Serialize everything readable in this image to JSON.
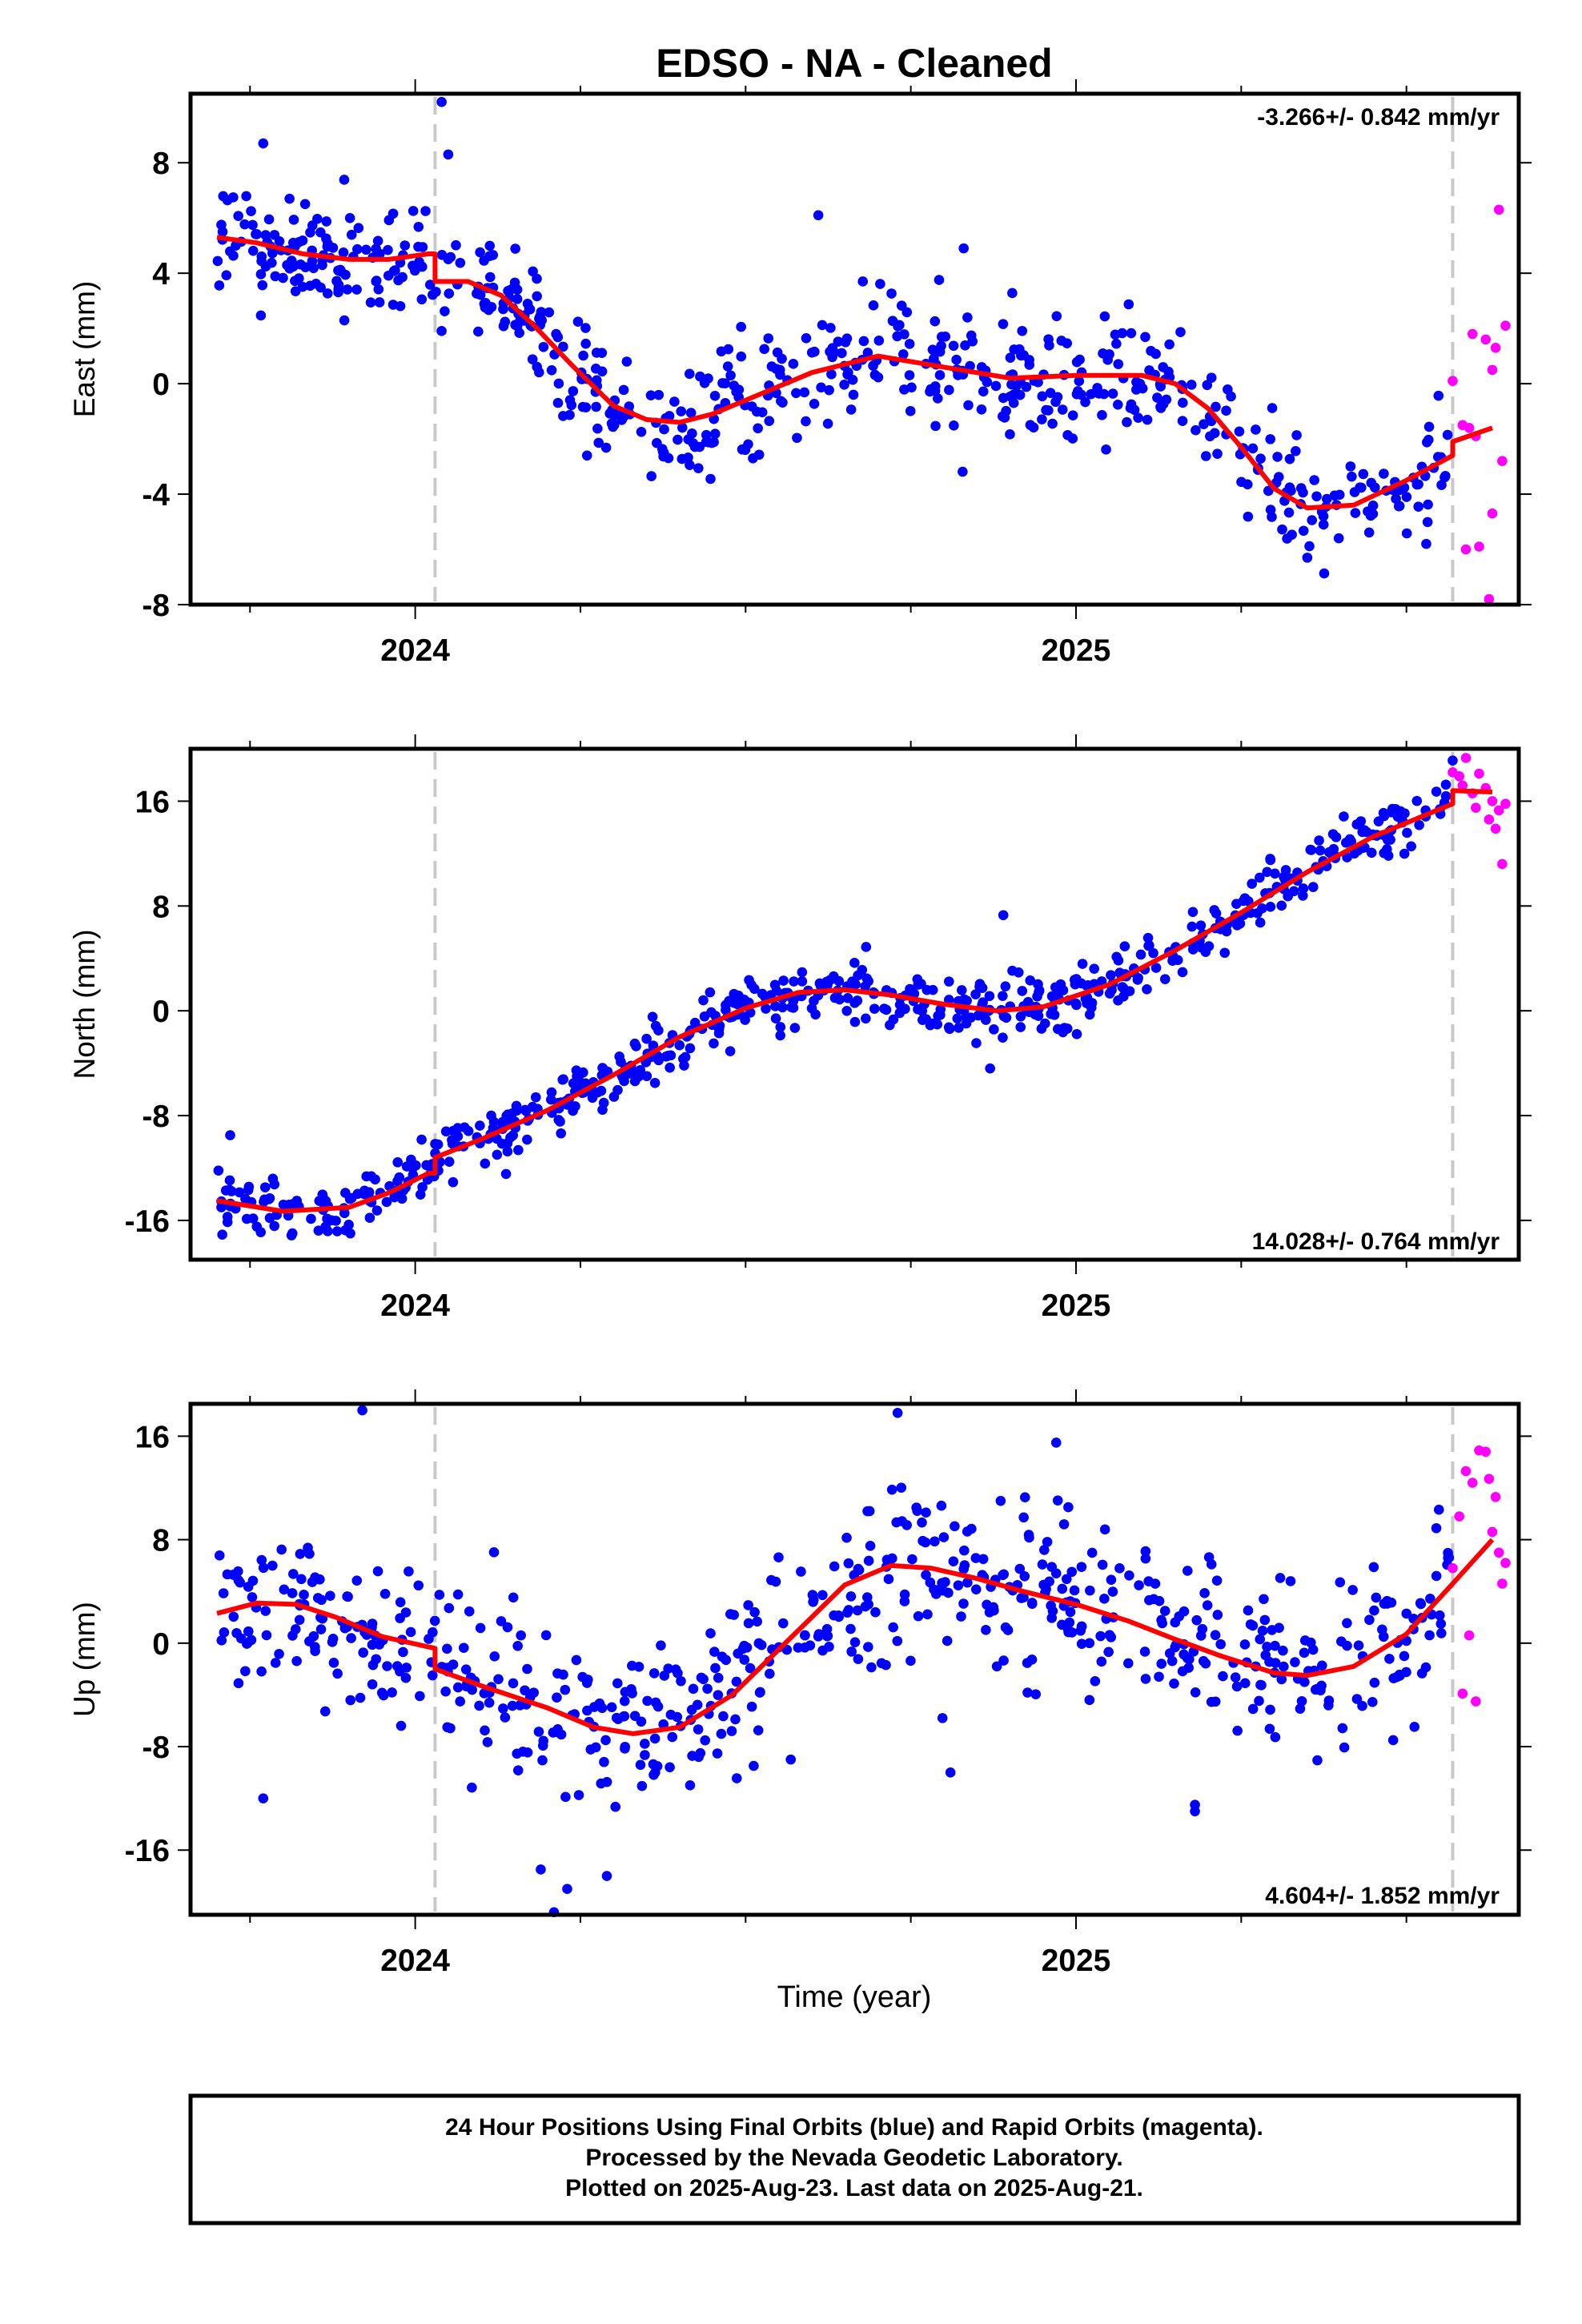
{
  "title": "EDSO  - NA - Cleaned",
  "xlabel": "Time (year)",
  "footer": {
    "line1": "24 Hour Positions Using Final Orbits (blue) and Rapid Orbits (magenta).",
    "line2": "Processed by the Nevada Geodetic Laboratory.",
    "line3": "Plotted on 2025-Aug-23. Last data on 2025-Aug-21."
  },
  "colors": {
    "final": "#0000ff",
    "rapid": "#ff00ff",
    "model": "#ff0000",
    "break": "#c8c8c8"
  },
  "chart_data": [
    {
      "type": "scatter",
      "ylabel": "East (mm)",
      "rate_label": "-3.266+/- 0.842 mm/yr",
      "xlim": [
        2023.66,
        2025.67
      ],
      "ylim": [
        -8,
        10.5
      ],
      "yticks": [
        8,
        4,
        0,
        -4,
        -8
      ],
      "xticks": [
        2024,
        2025
      ],
      "breaks": [
        2024.03,
        2025.57
      ],
      "model_x": [
        2023.7,
        2023.76,
        2023.83,
        2023.9,
        2023.96,
        2024.02,
        2024.03,
        2024.03,
        2024.08,
        2024.13,
        2024.18,
        2024.24,
        2024.3,
        2024.35,
        2024.4,
        2024.45,
        2024.52,
        2024.6,
        2024.7,
        2024.8,
        2024.9,
        2025.0,
        2025.05,
        2025.1,
        2025.15,
        2025.2,
        2025.25,
        2025.3,
        2025.35,
        2025.42,
        2025.5,
        2025.57,
        2025.57,
        2025.63
      ],
      "model_y": [
        5.3,
        5.1,
        4.7,
        4.5,
        4.5,
        4.7,
        4.7,
        3.7,
        3.7,
        3.2,
        2.1,
        0.6,
        -0.8,
        -1.3,
        -1.4,
        -1.1,
        -0.4,
        0.4,
        1.0,
        0.6,
        0.2,
        0.3,
        0.3,
        0.3,
        0.0,
        -0.9,
        -2.3,
        -3.8,
        -4.5,
        -4.4,
        -3.5,
        -2.6,
        -2.1,
        -1.6
      ],
      "final_anchor_x": [
        2023.7,
        2023.76,
        2023.83,
        2023.9,
        2023.96,
        2024.02,
        2024.03,
        2024.08,
        2024.13,
        2024.18,
        2024.24,
        2024.3,
        2024.35,
        2024.4,
        2024.45,
        2024.52,
        2024.6,
        2024.7,
        2024.8,
        2024.9,
        2025.0,
        2025.05,
        2025.1,
        2025.15,
        2025.2,
        2025.25,
        2025.3,
        2025.35,
        2025.42,
        2025.5,
        2025.57
      ],
      "final_anchor_y": [
        5.3,
        5.1,
        4.7,
        4.5,
        4.5,
        4.7,
        3.7,
        3.7,
        3.2,
        2.1,
        0.6,
        -0.8,
        -1.3,
        -1.4,
        -1.1,
        -0.4,
        0.4,
        1.0,
        0.6,
        0.2,
        0.3,
        0.3,
        0.3,
        0.0,
        -0.9,
        -2.3,
        -3.8,
        -4.5,
        -4.4,
        -3.5,
        -2.6
      ],
      "final_x_range": [
        2023.7,
        2025.565
      ],
      "final_count": 640,
      "final_scatter": 1.05,
      "final_outliers": [
        [
          2024.04,
          10.2
        ],
        [
          2024.05,
          8.3
        ],
        [
          2023.77,
          8.7
        ],
        [
          2024.61,
          6.1
        ],
        [
          2024.83,
          4.9
        ],
        [
          2024.26,
          -2.6
        ],
        [
          2025.35,
          -6.3
        ],
        [
          2025.53,
          -5.8
        ]
      ],
      "rapid": [
        [
          2025.57,
          0.1
        ],
        [
          2025.585,
          -1.5
        ],
        [
          2025.59,
          -6.0
        ],
        [
          2025.595,
          -1.6
        ],
        [
          2025.6,
          1.8
        ],
        [
          2025.605,
          -1.9
        ],
        [
          2025.61,
          -5.9
        ],
        [
          2025.62,
          1.6
        ],
        [
          2025.625,
          -7.8
        ],
        [
          2025.63,
          0.5
        ],
        [
          2025.63,
          -4.7
        ],
        [
          2025.635,
          1.3
        ],
        [
          2025.64,
          6.3
        ],
        [
          2025.645,
          -2.8
        ],
        [
          2025.65,
          2.1
        ]
      ]
    },
    {
      "type": "scatter",
      "ylabel": "North (mm)",
      "rate_label": "14.028+/- 0.764 mm/yr",
      "xlim": [
        2023.66,
        2025.67
      ],
      "ylim": [
        -19,
        20
      ],
      "yticks": [
        16,
        8,
        0,
        -8,
        -16
      ],
      "xticks": [
        2024,
        2025
      ],
      "breaks": [
        2024.03,
        2025.57
      ],
      "model_x": [
        2023.7,
        2023.8,
        2023.9,
        2023.96,
        2024.02,
        2024.03,
        2024.03,
        2024.1,
        2024.2,
        2024.3,
        2024.4,
        2024.5,
        2024.58,
        2024.65,
        2024.72,
        2024.8,
        2024.88,
        2024.95,
        2025.05,
        2025.15,
        2025.25,
        2025.35,
        2025.45,
        2025.57,
        2025.57,
        2025.63
      ],
      "model_y": [
        -14.5,
        -15.3,
        -15.0,
        -13.9,
        -12.4,
        -12.4,
        -11.2,
        -9.8,
        -7.6,
        -4.9,
        -2.0,
        0.2,
        1.4,
        1.6,
        1.2,
        0.5,
        0.0,
        0.3,
        2.0,
        4.6,
        7.5,
        10.6,
        13.3,
        15.8,
        16.8,
        16.7
      ],
      "final_anchor_x": [
        2023.7,
        2023.8,
        2023.9,
        2023.96,
        2024.02,
        2024.03,
        2024.1,
        2024.2,
        2024.3,
        2024.4,
        2024.5,
        2024.58,
        2024.65,
        2024.72,
        2024.8,
        2024.88,
        2024.95,
        2025.05,
        2025.15,
        2025.25,
        2025.35,
        2025.45,
        2025.57
      ],
      "final_anchor_y": [
        -14.5,
        -15.3,
        -15.0,
        -13.9,
        -12.4,
        -11.2,
        -9.8,
        -7.6,
        -4.9,
        -2.0,
        0.2,
        1.4,
        1.6,
        1.2,
        0.5,
        0.0,
        0.3,
        2.0,
        4.6,
        7.5,
        10.6,
        13.3,
        15.8
      ],
      "final_x_range": [
        2023.7,
        2025.565
      ],
      "final_count": 640,
      "final_scatter": 1.1,
      "final_outliers": [
        [
          2023.72,
          -9.5
        ],
        [
          2024.89,
          7.3
        ],
        [
          2024.87,
          -4.4
        ],
        [
          2024.67,
          2.7
        ],
        [
          2025.57,
          19.1
        ]
      ],
      "rapid": [
        [
          2025.57,
          18.2
        ],
        [
          2025.58,
          17.9
        ],
        [
          2025.585,
          17.2
        ],
        [
          2025.59,
          19.3
        ],
        [
          2025.6,
          16.6
        ],
        [
          2025.605,
          15.5
        ],
        [
          2025.61,
          18.1
        ],
        [
          2025.62,
          17.0
        ],
        [
          2025.625,
          14.6
        ],
        [
          2025.63,
          16.0
        ],
        [
          2025.635,
          13.9
        ],
        [
          2025.64,
          15.3
        ],
        [
          2025.645,
          11.2
        ],
        [
          2025.65,
          15.8
        ]
      ]
    },
    {
      "type": "scatter",
      "ylabel": "Up (mm)",
      "rate_label": "4.604+/- 1.852 mm/yr",
      "xlim": [
        2023.66,
        2025.67
      ],
      "ylim": [
        -21,
        18.5
      ],
      "yticks": [
        16,
        8,
        0,
        -8,
        -16
      ],
      "xticks": [
        2024,
        2025
      ],
      "breaks": [
        2024.03,
        2025.57
      ],
      "model_x": [
        2023.7,
        2023.76,
        2023.82,
        2023.88,
        2023.95,
        2024.03,
        2024.03,
        2024.1,
        2024.2,
        2024.27,
        2024.33,
        2024.4,
        2024.48,
        2024.57,
        2024.65,
        2024.72,
        2024.78,
        2024.85,
        2024.92,
        2025.0,
        2025.08,
        2025.15,
        2025.22,
        2025.3,
        2025.35,
        2025.42,
        2025.5,
        2025.57,
        2025.63
      ],
      "model_y": [
        2.3,
        3.1,
        3.0,
        2.0,
        0.5,
        -0.4,
        -2.0,
        -3.3,
        -5.0,
        -6.5,
        -7.0,
        -6.5,
        -4.0,
        0.5,
        4.5,
        6.0,
        5.8,
        5.0,
        4.0,
        3.0,
        1.7,
        0.3,
        -1.0,
        -2.3,
        -2.5,
        -1.8,
        0.7,
        4.6,
        8.0
      ],
      "final_anchor_x": [
        2023.7,
        2023.76,
        2023.82,
        2023.88,
        2023.95,
        2024.03,
        2024.1,
        2024.2,
        2024.27,
        2024.33,
        2024.4,
        2024.48,
        2024.57,
        2024.65,
        2024.72,
        2024.78,
        2024.85,
        2024.92,
        2025.0,
        2025.08,
        2025.15,
        2025.22,
        2025.3,
        2025.35,
        2025.42,
        2025.5,
        2025.57
      ],
      "final_anchor_y": [
        2.3,
        3.1,
        3.0,
        2.0,
        0.5,
        -2.0,
        -3.3,
        -5.0,
        -6.5,
        -7.0,
        -6.5,
        -4.0,
        0.5,
        4.5,
        6.0,
        5.8,
        5.0,
        4.0,
        3.0,
        1.7,
        0.3,
        -1.0,
        -2.3,
        -2.5,
        -1.8,
        0.7,
        4.6
      ],
      "final_x_range": [
        2023.7,
        2025.565
      ],
      "final_count": 640,
      "final_scatter": 3.3,
      "final_outliers": [
        [
          2023.92,
          18.0
        ],
        [
          2023.77,
          -12.0
        ],
        [
          2024.21,
          -20.8
        ],
        [
          2024.19,
          -17.5
        ],
        [
          2024.23,
          -19.0
        ],
        [
          2024.29,
          -18.0
        ],
        [
          2024.81,
          -10.0
        ],
        [
          2025.18,
          -12.5
        ],
        [
          2025.18,
          -13.0
        ],
        [
          2024.73,
          17.8
        ],
        [
          2024.97,
          15.5
        ],
        [
          2024.16,
          0.6
        ],
        [
          2025.48,
          -7.5
        ]
      ],
      "rapid": [
        [
          2025.57,
          5.8
        ],
        [
          2025.58,
          9.8
        ],
        [
          2025.585,
          -3.9
        ],
        [
          2025.59,
          13.3
        ],
        [
          2025.595,
          0.6
        ],
        [
          2025.6,
          12.4
        ],
        [
          2025.605,
          -4.5
        ],
        [
          2025.61,
          14.9
        ],
        [
          2025.62,
          14.8
        ],
        [
          2025.625,
          12.7
        ],
        [
          2025.63,
          8.6
        ],
        [
          2025.635,
          11.3
        ],
        [
          2025.64,
          7.0
        ],
        [
          2025.645,
          4.6
        ],
        [
          2025.65,
          6.2
        ]
      ]
    }
  ]
}
